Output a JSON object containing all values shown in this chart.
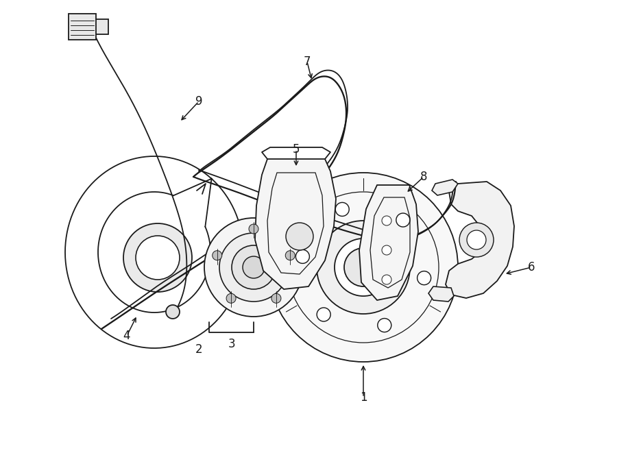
{
  "bg": "#ffffff",
  "lc": "#1a1a1a",
  "lw": 1.3,
  "fw": 9.0,
  "fh": 6.61,
  "dpi": 100,
  "fs": 12
}
